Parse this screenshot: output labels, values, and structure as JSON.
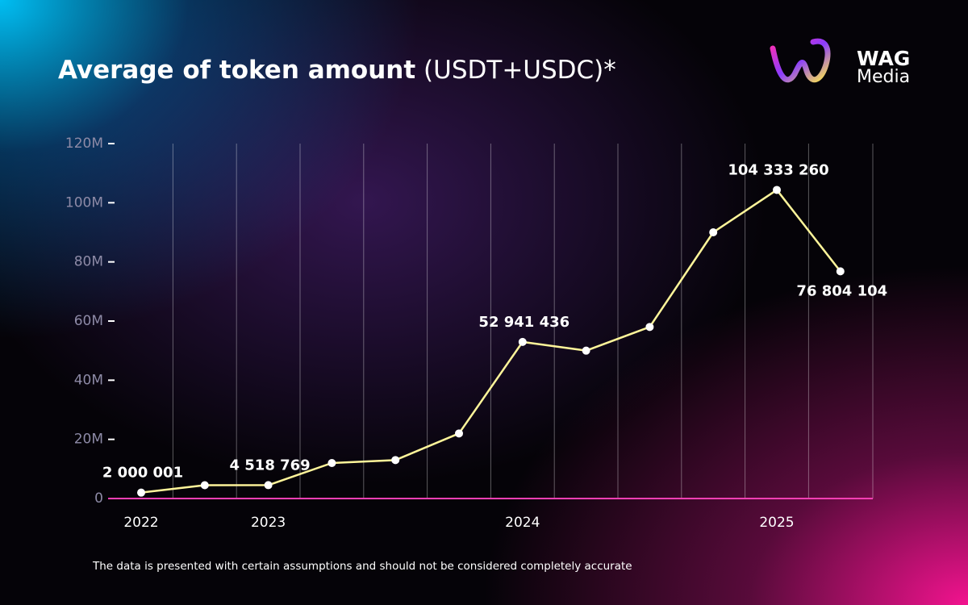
{
  "brand": {
    "name": "WAG",
    "sub": "Media"
  },
  "chart_data": {
    "type": "line",
    "title": "Average of token amount",
    "subtitle": "(USDT+USDC)*",
    "note": "The data is presented with certain assumptions and should not be considered completely accurate",
    "categories": [
      "2022",
      null,
      "2023",
      null,
      null,
      null,
      "2024",
      null,
      null,
      null,
      "2025",
      null
    ],
    "series": [
      {
        "name": "Average of token amount",
        "color": "#fff59a",
        "values": [
          2000001,
          4500000,
          4518769,
          12000000,
          13000000,
          22000000,
          52941436,
          50000000,
          58000000,
          90000000,
          104333260,
          76804104
        ],
        "value_labels": [
          "2 000 001",
          null,
          "4 518 769",
          null,
          null,
          null,
          "52 941 436",
          null,
          null,
          null,
          "104 333 260",
          "76 804 104"
        ]
      }
    ],
    "ylim": [
      0,
      120000000
    ],
    "yticks": [
      0,
      {
        "value": 20000000,
        "label": "20M"
      },
      {
        "value": 40000000,
        "label": "40M"
      },
      {
        "value": 60000000,
        "label": "60M"
      },
      {
        "value": 80000000,
        "label": "80M"
      },
      {
        "value": 100000000,
        "label": "100M"
      },
      {
        "value": 120000000,
        "label": "120M"
      }
    ],
    "grid": true
  }
}
